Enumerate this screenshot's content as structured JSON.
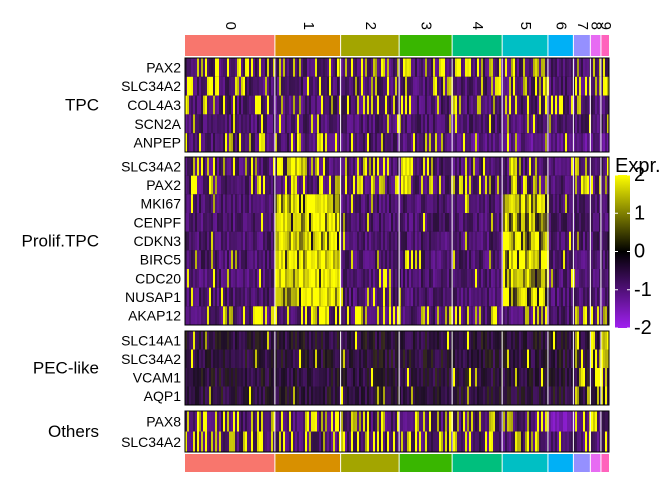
{
  "chart_data": {
    "type": "heatmap",
    "title": "",
    "clusters": [
      "0",
      "1",
      "2",
      "3",
      "4",
      "5",
      "6",
      "7",
      "8",
      "9"
    ],
    "cluster_colors": [
      "#F8766D",
      "#D89000",
      "#A3A500",
      "#39B600",
      "#00BF7D",
      "#00BFC4",
      "#00B0F6",
      "#9590FF",
      "#E76BF3",
      "#FF62BC"
    ],
    "cluster_cell_fractions": [
      0.212,
      0.155,
      0.138,
      0.125,
      0.118,
      0.108,
      0.06,
      0.04,
      0.025,
      0.019
    ],
    "groups": [
      {
        "name": "TPC",
        "genes": [
          "PAX2",
          "SLC34A2",
          "COL4A3",
          "SCN2A",
          "ANPEP"
        ]
      },
      {
        "name": "Prolif.TPC",
        "genes": [
          "SLC34A2",
          "PAX2",
          "MKI67",
          "CENPF",
          "CDKN3",
          "BIRC5",
          "CDC20",
          "NUSAP1",
          "AKAP12"
        ]
      },
      {
        "name": "PEC-like",
        "genes": [
          "SLC14A1",
          "SLC34A2",
          "VCAM1",
          "AQP1"
        ]
      },
      {
        "name": "Others",
        "genes": [
          "PAX8",
          "SLC34A2"
        ]
      }
    ],
    "legend": {
      "title": "Expr.",
      "ticks": [
        "2",
        "1",
        "0",
        "-1",
        "-2"
      ],
      "range": [
        -2,
        2
      ],
      "colors": [
        "#FFFF00",
        "#000000",
        "#A020F0"
      ]
    }
  }
}
